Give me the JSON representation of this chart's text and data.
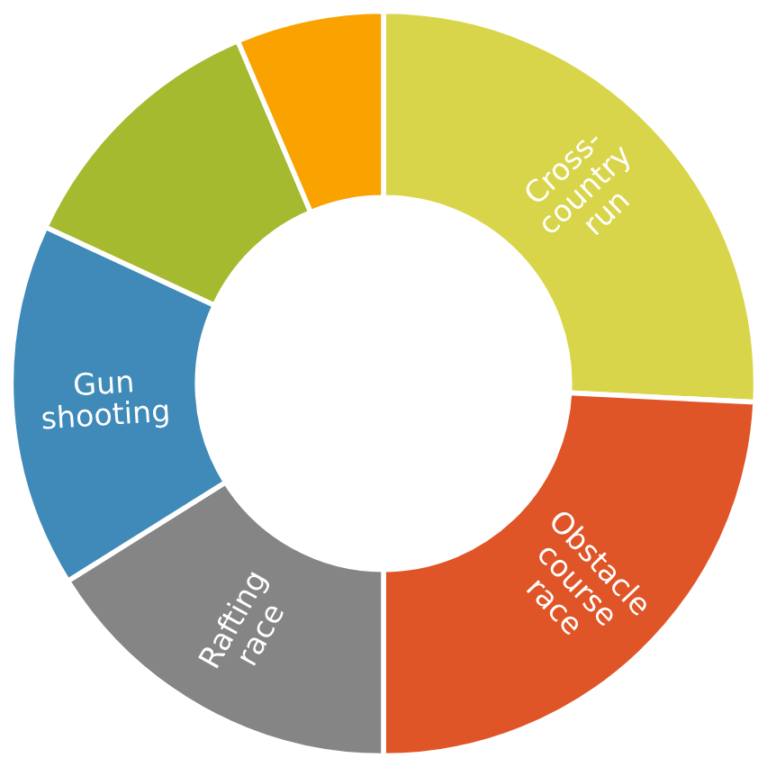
{
  "chart_data": {
    "type": "donut",
    "categories": [
      "Cross-\ncountry\nrun",
      "Obstacle\ncourse\nrace",
      "Rafting\nrace",
      "Gun\nshooting",
      null,
      null
    ],
    "values": [
      25.8,
      24.2,
      16.1,
      15.8,
      11.7,
      6.4
    ],
    "colors": [
      "#d9d54a",
      "#e05527",
      "#858585",
      "#3f8ab8",
      "#a6ba30",
      "#f9a200"
    ],
    "legend": false
  }
}
